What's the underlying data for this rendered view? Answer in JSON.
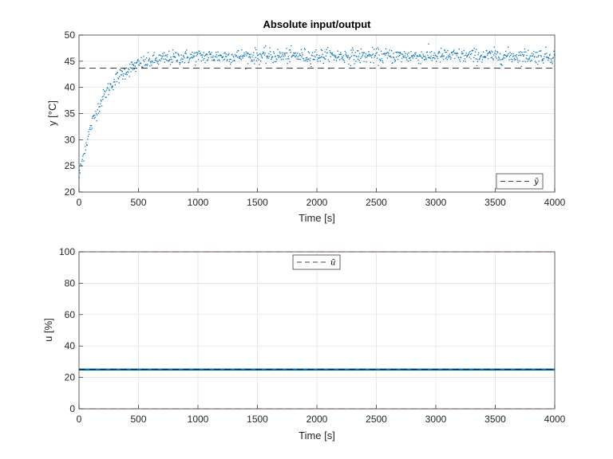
{
  "chart_data": [
    {
      "type": "scatter",
      "title": "Absolute input/output",
      "xlabel": "Time [s]",
      "ylabel": "y [°C]",
      "xlim": [
        0,
        4000
      ],
      "ylim": [
        20,
        50
      ],
      "xticks": [
        0,
        500,
        1000,
        1500,
        2000,
        2500,
        3000,
        3500,
        4000
      ],
      "yticks": [
        20,
        25,
        30,
        35,
        40,
        45,
        50
      ],
      "grid": true,
      "legend": {
        "entries": [
          "ȳ"
        ],
        "location": "bottom-right"
      },
      "series": [
        {
          "name": "y",
          "style": "dots",
          "color": "#0072BD",
          "model": {
            "start": 23,
            "final": 46,
            "tau_s": 190,
            "noise": 0.7,
            "sample_s": 4
          }
        },
        {
          "name": "ȳ",
          "style": "dashed",
          "color": "#000000",
          "y": 43.7
        }
      ]
    },
    {
      "type": "line",
      "title": "",
      "xlabel": "Time [s]",
      "ylabel": "u [%]",
      "xlim": [
        0,
        4000
      ],
      "ylim": [
        0,
        100
      ],
      "xticks": [
        0,
        500,
        1000,
        1500,
        2000,
        2500,
        3000,
        3500,
        4000
      ],
      "yticks": [
        0,
        20,
        40,
        60,
        80,
        100
      ],
      "grid": true,
      "legend": {
        "entries": [
          "ū"
        ],
        "location": "top-center"
      },
      "series": [
        {
          "name": "u",
          "style": "solid",
          "color": "#0072BD",
          "y": 25
        },
        {
          "name": "ū",
          "style": "dashed",
          "color": "#000000",
          "y": 25
        },
        {
          "name": "u_max",
          "style": "dashed",
          "color": "#FF0000",
          "y": 100
        },
        {
          "name": "u_min",
          "style": "dashed",
          "color": "#FF0000",
          "y": 0
        }
      ]
    }
  ]
}
